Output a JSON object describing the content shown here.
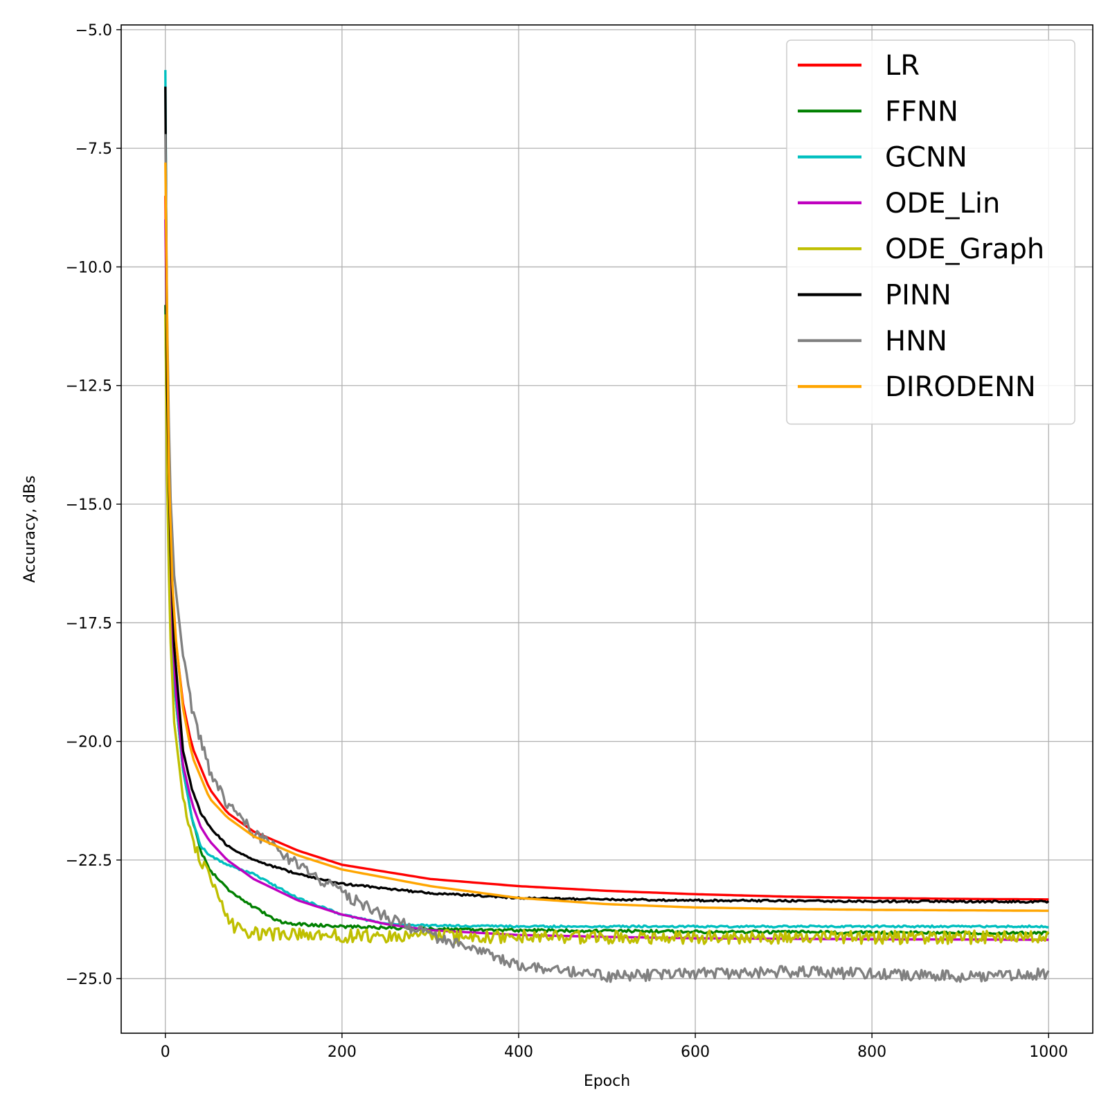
{
  "chart_data": {
    "type": "line",
    "title": "",
    "xlabel": "Epoch",
    "ylabel": "Accuracy, dBs",
    "xlim": [
      -50,
      1050
    ],
    "ylim": [
      -26.15,
      -4.9
    ],
    "xticks": [
      0,
      200,
      400,
      600,
      800,
      1000
    ],
    "xtick_labels": [
      "0",
      "200",
      "400",
      "600",
      "800",
      "1000"
    ],
    "yticks": [
      -5.0,
      -7.5,
      -10.0,
      -12.5,
      -15.0,
      -17.5,
      -20.0,
      -22.5,
      -25.0
    ],
    "ytick_labels": [
      "−5.0",
      "−7.5",
      "−10.0",
      "−12.5",
      "−15.0",
      "−17.5",
      "−20.0",
      "−22.5",
      "−25.0"
    ],
    "grid": true,
    "legend_position": "top-right",
    "series": [
      {
        "name": "LR",
        "color": "#ff0000",
        "noise": 0,
        "x": [
          0,
          2,
          5,
          10,
          20,
          30,
          50,
          70,
          100,
          150,
          200,
          300,
          400,
          500,
          600,
          700,
          800,
          900,
          1000
        ],
        "y": [
          -8.5,
          -12.0,
          -15.5,
          -17.6,
          -19.2,
          -20.1,
          -21.0,
          -21.5,
          -21.9,
          -22.3,
          -22.6,
          -22.9,
          -23.05,
          -23.15,
          -23.22,
          -23.27,
          -23.3,
          -23.32,
          -23.33
        ]
      },
      {
        "name": "FFNN",
        "color": "#008000",
        "noise": 0.03,
        "x": [
          0,
          2,
          5,
          10,
          20,
          30,
          40,
          50,
          70,
          100,
          130,
          150,
          200,
          300,
          400,
          600,
          800,
          1000
        ],
        "y": [
          -10.8,
          -14.0,
          -16.8,
          -18.8,
          -20.6,
          -21.6,
          -22.3,
          -22.7,
          -23.1,
          -23.5,
          -23.8,
          -23.85,
          -23.9,
          -23.95,
          -23.98,
          -24.01,
          -24.03,
          -24.04
        ]
      },
      {
        "name": "GCNN",
        "color": "#00bfbf",
        "noise": 0.02,
        "x": [
          0,
          1,
          2,
          5,
          10,
          20,
          30,
          40,
          50,
          70,
          100,
          130,
          150,
          200,
          250,
          300,
          400,
          600,
          800,
          1000
        ],
        "y": [
          -5.85,
          -9.5,
          -12.5,
          -16.0,
          -18.8,
          -20.6,
          -21.6,
          -22.2,
          -22.4,
          -22.6,
          -22.8,
          -23.1,
          -23.3,
          -23.65,
          -23.85,
          -23.88,
          -23.9,
          -23.9,
          -23.9,
          -23.9
        ]
      },
      {
        "name": "ODE_Lin",
        "color": "#bf00bf",
        "noise": 0,
        "x": [
          0,
          2,
          5,
          10,
          20,
          30,
          40,
          50,
          70,
          100,
          150,
          200,
          250,
          300,
          400,
          500,
          600,
          800,
          1000
        ],
        "y": [
          -9.0,
          -13.0,
          -16.2,
          -18.6,
          -20.5,
          -21.3,
          -21.8,
          -22.1,
          -22.5,
          -22.9,
          -23.35,
          -23.65,
          -23.85,
          -23.98,
          -24.08,
          -24.12,
          -24.15,
          -24.17,
          -24.18
        ]
      },
      {
        "name": "ODE_Graph",
        "color": "#bfbf00",
        "noise": 0.14,
        "x": [
          0,
          2,
          5,
          10,
          20,
          30,
          40,
          50,
          60,
          70,
          80,
          100,
          200,
          400,
          600,
          800,
          1000
        ],
        "y": [
          -11.0,
          -14.5,
          -17.5,
          -19.6,
          -21.2,
          -22.0,
          -22.5,
          -22.9,
          -23.3,
          -23.7,
          -23.95,
          -24.05,
          -24.1,
          -24.12,
          -24.13,
          -24.13,
          -24.13
        ]
      },
      {
        "name": "PINN",
        "color": "#000000",
        "noise": 0.02,
        "x": [
          0,
          1,
          2,
          5,
          10,
          20,
          30,
          40,
          50,
          70,
          100,
          150,
          200,
          300,
          400,
          500,
          600,
          800,
          1000
        ],
        "y": [
          -6.2,
          -9.5,
          -12.5,
          -15.5,
          -18.0,
          -20.2,
          -21.0,
          -21.5,
          -21.8,
          -22.2,
          -22.5,
          -22.8,
          -23.0,
          -23.2,
          -23.3,
          -23.33,
          -23.35,
          -23.37,
          -23.38
        ]
      },
      {
        "name": "HNN",
        "color": "#808080",
        "noise": 0.12,
        "x": [
          0,
          2,
          5,
          10,
          20,
          30,
          40,
          50,
          60,
          70,
          80,
          100,
          120,
          150,
          200,
          250,
          300,
          350,
          400,
          450,
          500,
          600,
          700,
          800,
          900,
          1000
        ],
        "y": [
          -7.2,
          -11.0,
          -14.5,
          -16.5,
          -18.2,
          -19.3,
          -20.0,
          -20.6,
          -21.0,
          -21.3,
          -21.5,
          -21.9,
          -22.2,
          -22.6,
          -23.2,
          -23.7,
          -24.1,
          -24.4,
          -24.7,
          -24.85,
          -24.95,
          -24.9,
          -24.85,
          -24.9,
          -24.95,
          -24.9
        ]
      },
      {
        "name": "DIRODENN",
        "color": "#ffa500",
        "noise": 0,
        "x": [
          0,
          2,
          5,
          10,
          20,
          30,
          50,
          70,
          100,
          150,
          200,
          300,
          400,
          500,
          600,
          700,
          800,
          900,
          1000
        ],
        "y": [
          -7.8,
          -12.0,
          -15.5,
          -17.5,
          -19.3,
          -20.3,
          -21.2,
          -21.6,
          -22.0,
          -22.4,
          -22.7,
          -23.05,
          -23.3,
          -23.43,
          -23.5,
          -23.53,
          -23.55,
          -23.56,
          -23.57
        ]
      }
    ]
  }
}
